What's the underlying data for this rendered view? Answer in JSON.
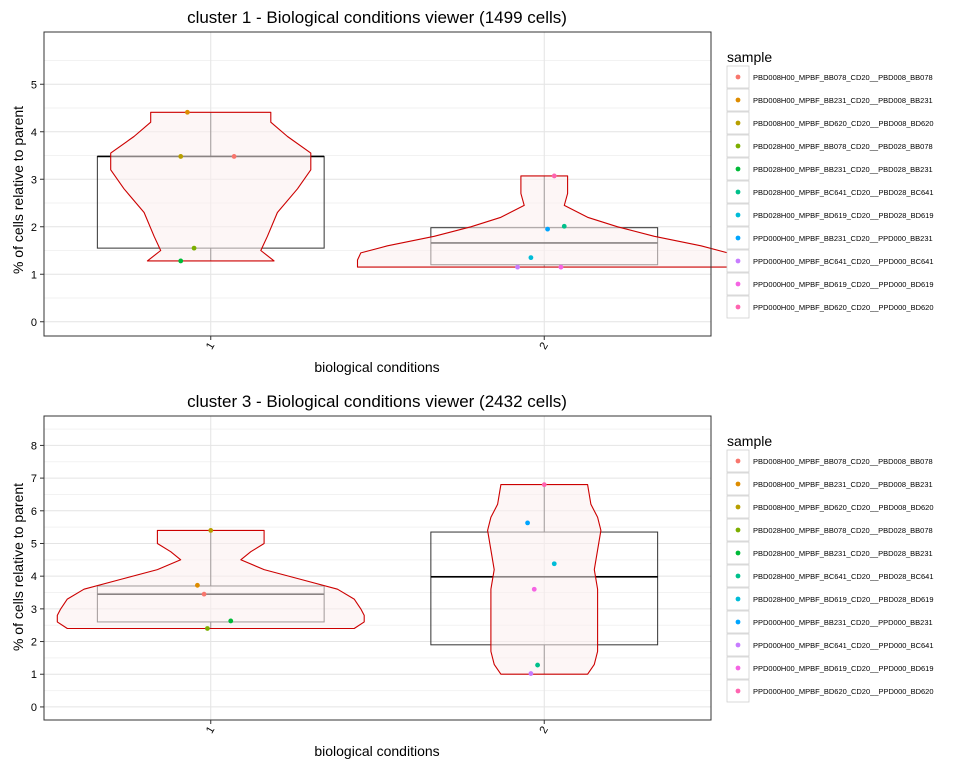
{
  "chart_data": [
    {
      "type": "violin-box",
      "title": "cluster 1 - Biological conditions viewer (1499 cells)",
      "xlabel": "biological conditions",
      "ylabel": "% of cells relative to parent",
      "categories": [
        "1",
        "2"
      ],
      "ylim": [
        -0.3,
        6.1
      ],
      "yticks": [
        0,
        1,
        2,
        3,
        4,
        5
      ],
      "grid": true,
      "legend": {
        "title": "sample",
        "position": "right"
      },
      "box": [
        {
          "category": "1",
          "q1": 1.55,
          "median": 3.48,
          "q3": 3.48,
          "min": 1.28,
          "max": 4.41
        },
        {
          "category": "2",
          "q1": 1.2,
          "median": 1.66,
          "q3": 1.98,
          "min": 1.15,
          "max": 3.07
        }
      ],
      "violin": [
        {
          "category": "1",
          "profile": [
            [
              1.28,
              0.19
            ],
            [
              1.5,
              0.15
            ],
            [
              1.8,
              0.17
            ],
            [
              2.3,
              0.2
            ],
            [
              2.8,
              0.26
            ],
            [
              3.2,
              0.3
            ],
            [
              3.55,
              0.3
            ],
            [
              3.9,
              0.23
            ],
            [
              4.2,
              0.18
            ],
            [
              4.41,
              0.18
            ]
          ]
        },
        {
          "category": "2",
          "profile": [
            [
              1.15,
              0.56
            ],
            [
              1.3,
              0.56
            ],
            [
              1.45,
              0.55
            ],
            [
              1.6,
              0.47
            ],
            [
              1.8,
              0.33
            ],
            [
              2.0,
              0.22
            ],
            [
              2.2,
              0.13
            ],
            [
              2.45,
              0.06
            ],
            [
              2.7,
              0.07
            ],
            [
              2.9,
              0.07
            ],
            [
              3.07,
              0.07
            ]
          ]
        }
      ],
      "points": [
        {
          "category": "1",
          "sample": "PBD008H00_MPBF_BB078_CD20__PBD008_BB078",
          "value": 3.48,
          "jitter": 0.07
        },
        {
          "category": "1",
          "sample": "PBD008H00_MPBF_BB231_CD20__PBD008_BB231",
          "value": 4.41,
          "jitter": -0.07
        },
        {
          "category": "1",
          "sample": "PBD008H00_MPBF_BD620_CD20__PBD008_BD620",
          "value": 3.48,
          "jitter": -0.09
        },
        {
          "category": "1",
          "sample": "PBD028H00_MPBF_BB078_CD20__PBD028_BB078",
          "value": 1.55,
          "jitter": -0.05
        },
        {
          "category": "1",
          "sample": "PBD028H00_MPBF_BB231_CD20__PBD028_BB231",
          "value": 1.28,
          "jitter": -0.09
        },
        {
          "category": "2",
          "sample": "PBD028H00_MPBF_BC641_CD20__PBD028_BC641",
          "value": 2.01,
          "jitter": 0.06
        },
        {
          "category": "2",
          "sample": "PBD028H00_MPBF_BD619_CD20__PBD028_BD619",
          "value": 1.35,
          "jitter": -0.04
        },
        {
          "category": "2",
          "sample": "PPD000H00_MPBF_BB231_CD20__PPD000_BB231",
          "value": 1.95,
          "jitter": 0.01
        },
        {
          "category": "2",
          "sample": "PPD000H00_MPBF_BC641_CD20__PPD000_BC641",
          "value": 1.15,
          "jitter": -0.08
        },
        {
          "category": "2",
          "sample": "PPD000H00_MPBF_BD619_CD20__PPD000_BD619",
          "value": 1.15,
          "jitter": 0.05
        },
        {
          "category": "2",
          "sample": "PPD000H00_MPBF_BD620_CD20__PPD000_BD620",
          "value": 3.07,
          "jitter": 0.03
        }
      ]
    },
    {
      "type": "violin-box",
      "title": "cluster 3 - Biological conditions viewer (2432 cells)",
      "xlabel": "biological conditions",
      "ylabel": "% of cells relative to parent",
      "categories": [
        "1",
        "2"
      ],
      "ylim": [
        -0.4,
        8.9
      ],
      "yticks": [
        0,
        1,
        2,
        3,
        4,
        5,
        6,
        7,
        8
      ],
      "grid": true,
      "legend": {
        "title": "sample",
        "position": "right"
      },
      "box": [
        {
          "category": "1",
          "q1": 2.6,
          "median": 3.45,
          "q3": 3.7,
          "min": 2.4,
          "max": 5.4
        },
        {
          "category": "2",
          "q1": 1.9,
          "median": 3.98,
          "q3": 5.35,
          "min": 1.0,
          "max": 6.8
        }
      ],
      "violin": [
        {
          "category": "1",
          "profile": [
            [
              2.4,
              0.43
            ],
            [
              2.6,
              0.46
            ],
            [
              2.8,
              0.46
            ],
            [
              3.0,
              0.45
            ],
            [
              3.3,
              0.43
            ],
            [
              3.6,
              0.38
            ],
            [
              3.9,
              0.27
            ],
            [
              4.2,
              0.16
            ],
            [
              4.5,
              0.09
            ],
            [
              4.75,
              0.12
            ],
            [
              5.0,
              0.16
            ],
            [
              5.2,
              0.16
            ],
            [
              5.4,
              0.16
            ]
          ]
        },
        {
          "category": "2",
          "profile": [
            [
              1.0,
              0.13
            ],
            [
              1.3,
              0.15
            ],
            [
              1.7,
              0.16
            ],
            [
              2.2,
              0.16
            ],
            [
              3.0,
              0.16
            ],
            [
              3.6,
              0.16
            ],
            [
              4.2,
              0.15
            ],
            [
              4.8,
              0.16
            ],
            [
              5.4,
              0.17
            ],
            [
              5.8,
              0.16
            ],
            [
              6.2,
              0.14
            ],
            [
              6.8,
              0.13
            ]
          ]
        }
      ],
      "points": [
        {
          "category": "1",
          "sample": "PBD008H00_MPBF_BB078_CD20__PBD008_BB078",
          "value": 3.45,
          "jitter": -0.02
        },
        {
          "category": "1",
          "sample": "PBD008H00_MPBF_BB231_CD20__PBD008_BB231",
          "value": 3.72,
          "jitter": -0.04
        },
        {
          "category": "1",
          "sample": "PBD008H00_MPBF_BD620_CD20__PBD008_BD620",
          "value": 5.4,
          "jitter": 0.0
        },
        {
          "category": "1",
          "sample": "PBD028H00_MPBF_BB078_CD20__PBD028_BB078",
          "value": 2.4,
          "jitter": -0.01
        },
        {
          "category": "1",
          "sample": "PBD028H00_MPBF_BB231_CD20__PBD028_BB231",
          "value": 2.63,
          "jitter": 0.06
        },
        {
          "category": "2",
          "sample": "PBD028H00_MPBF_BC641_CD20__PBD028_BC641",
          "value": 1.28,
          "jitter": -0.02
        },
        {
          "category": "2",
          "sample": "PBD028H00_MPBF_BD619_CD20__PBD028_BD619",
          "value": 4.38,
          "jitter": 0.03
        },
        {
          "category": "2",
          "sample": "PPD000H00_MPBF_BB231_CD20__PPD000_BB231",
          "value": 5.63,
          "jitter": -0.05
        },
        {
          "category": "2",
          "sample": "PPD000H00_MPBF_BC641_CD20__PPD000_BC641",
          "value": 1.02,
          "jitter": -0.04
        },
        {
          "category": "2",
          "sample": "PPD000H00_MPBF_BD619_CD20__PPD000_BD619",
          "value": 3.6,
          "jitter": -0.03
        },
        {
          "category": "2",
          "sample": "PPD000H00_MPBF_BD620_CD20__PPD000_BD620",
          "value": 6.8,
          "jitter": 0.0
        }
      ]
    }
  ],
  "legend_items": [
    {
      "label": "PBD008H00_MPBF_BB078_CD20__PBD008_BB078",
      "color": "#F8766D"
    },
    {
      "label": "PBD008H00_MPBF_BB231_CD20__PBD008_BB231",
      "color": "#DE8C00"
    },
    {
      "label": "PBD008H00_MPBF_BD620_CD20__PBD008_BD620",
      "color": "#B79F00"
    },
    {
      "label": "PBD028H00_MPBF_BB078_CD20__PBD028_BB078",
      "color": "#7CAE00"
    },
    {
      "label": "PBD028H00_MPBF_BB231_CD20__PBD028_BB231",
      "color": "#00BA38"
    },
    {
      "label": "PBD028H00_MPBF_BC641_CD20__PBD028_BC641",
      "color": "#00C08B"
    },
    {
      "label": "PBD028H00_MPBF_BD619_CD20__PBD028_BD619",
      "color": "#00BCD8"
    },
    {
      "label": "PPD000H00_MPBF_BB231_CD20__PPD000_BB231",
      "color": "#00A5FF"
    },
    {
      "label": "PPD000H00_MPBF_BC641_CD20__PPD000_BC641",
      "color": "#C77CFF"
    },
    {
      "label": "PPD000H00_MPBF_BD619_CD20__PPD000_BD619",
      "color": "#F564E3"
    },
    {
      "label": "PPD000H00_MPBF_BD620_CD20__PPD000_BD620",
      "color": "#FF64B0"
    }
  ],
  "colors": {
    "violin_stroke": "#CC0000",
    "violin_fill": "#FCEEEE",
    "grid": "#E4E4E4",
    "box_stroke": "#333333",
    "panel_border": "#333333"
  }
}
